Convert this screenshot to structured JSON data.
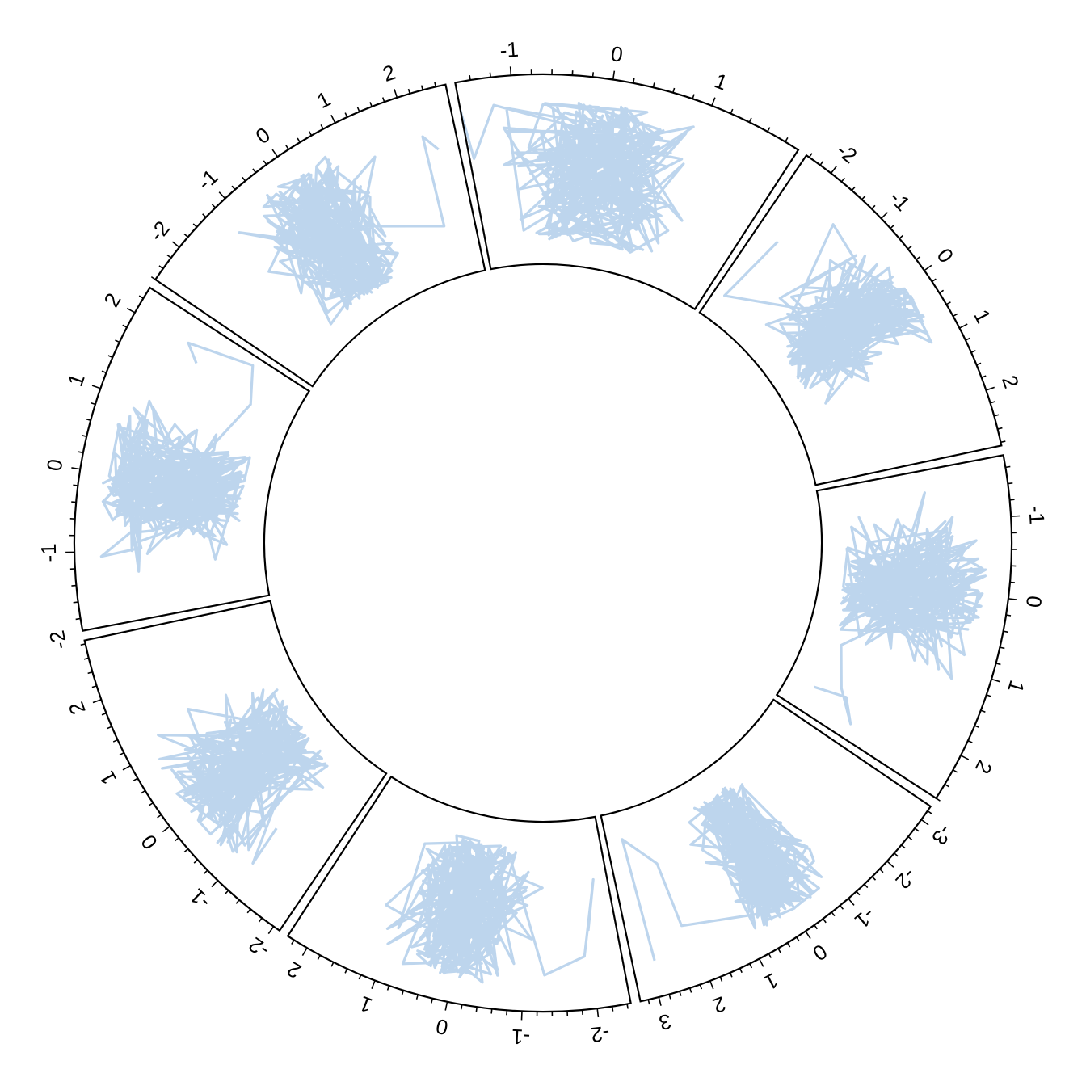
{
  "chart_data": {
    "type": "line",
    "layout": "circular",
    "title": "",
    "line_color": "#a7c7e7",
    "line_opacity": 0.75,
    "sectors": [
      {
        "name": "",
        "x_range": [
          -1.75,
          2.6
        ],
        "ticks": [
          "-1",
          "0",
          "1",
          "2"
        ],
        "tick_values": [
          -1,
          0,
          1,
          2
        ],
        "seed": 11,
        "n": 260,
        "tail": [
          [
            1.2,
            0.15
          ],
          [
            1.9,
            0.25
          ],
          [
            2.35,
            0.4
          ],
          [
            2.0,
            0.3
          ],
          [
            2.1,
            0.1
          ]
        ]
      },
      {
        "name": "",
        "x_range": [
          -3.3,
          3.35
        ],
        "ticks": [
          "-3",
          "-2",
          "-1",
          "0",
          "1",
          "2",
          "3"
        ],
        "tick_values": [
          -3,
          -2,
          -1,
          0,
          1,
          2,
          3
        ],
        "seed": 23,
        "n": 260,
        "tail": [
          [
            2.15,
            0.7
          ],
          [
            2.2,
            0.3
          ],
          [
            2.9,
            0.1
          ],
          [
            2.9,
            0.85
          ]
        ]
      },
      {
        "name": "",
        "x_range": [
          -2.45,
          2.3
        ],
        "ticks": [
          "-2",
          "-1",
          "0",
          "1",
          "2"
        ],
        "tick_values": [
          -2,
          -1,
          0,
          1,
          2
        ],
        "seed": 37,
        "n": 260,
        "tail": [
          [
            -1.3,
            0.85
          ],
          [
            -1.9,
            0.75
          ],
          [
            -2.2,
            0.3
          ],
          [
            -2.0,
            0.6
          ]
        ]
      },
      {
        "name": "",
        "x_range": [
          -2.1,
          2.85
        ],
        "ticks": [
          "-2",
          "-1",
          "0",
          "1",
          "2"
        ],
        "tick_values": [
          -2,
          -1,
          0,
          1,
          2
        ],
        "seed": 41,
        "n": 260,
        "tail": [
          [
            -0.5,
            0.3
          ],
          [
            -1.2,
            0.85
          ],
          [
            -1.1,
            0.6
          ]
        ]
      },
      {
        "name": "",
        "x_range": [
          -1.95,
          2.35
        ],
        "ticks": [
          "-2",
          "-1",
          "0",
          "1",
          "2"
        ],
        "tick_values": [
          -2,
          -1,
          0,
          1,
          2
        ],
        "seed": 53,
        "n": 260,
        "tail": [
          [
            1.6,
            0.2
          ],
          [
            2.2,
            0.3
          ],
          [
            2.0,
            0.7
          ],
          [
            1.8,
            0.6
          ]
        ]
      },
      {
        "name": "",
        "x_range": [
          -2.6,
          2.75
        ],
        "ticks": [
          "-2",
          "-1",
          "0",
          "1",
          "2"
        ],
        "tick_values": [
          -2,
          -1,
          0,
          1,
          2
        ],
        "seed": 67,
        "n": 260,
        "tail": [
          [
            2.1,
            0.25
          ],
          [
            2.2,
            0.8
          ],
          [
            2.4,
            0.7
          ]
        ]
      },
      {
        "name": "",
        "x_range": [
          -1.55,
          1.95
        ],
        "ticks": [
          "-1",
          "0",
          "1"
        ],
        "tick_values": [
          -1,
          0,
          1
        ],
        "seed": 71,
        "n": 260,
        "tail": [
          [
            -1.2,
            0.9
          ],
          [
            -1.5,
            0.6
          ],
          [
            -1.55,
            0.9
          ]
        ]
      },
      {
        "name": "",
        "x_range": [
          -2.45,
          2.85
        ],
        "ticks": [
          "-2",
          "-1",
          "0",
          "1",
          "2"
        ],
        "tick_values": [
          -2,
          -1,
          0,
          1,
          2
        ],
        "seed": 83,
        "n": 260,
        "tail": [
          [
            -0.6,
            0.4
          ],
          [
            -2.2,
            0.1
          ],
          [
            -2.0,
            0.55
          ]
        ]
      }
    ]
  }
}
